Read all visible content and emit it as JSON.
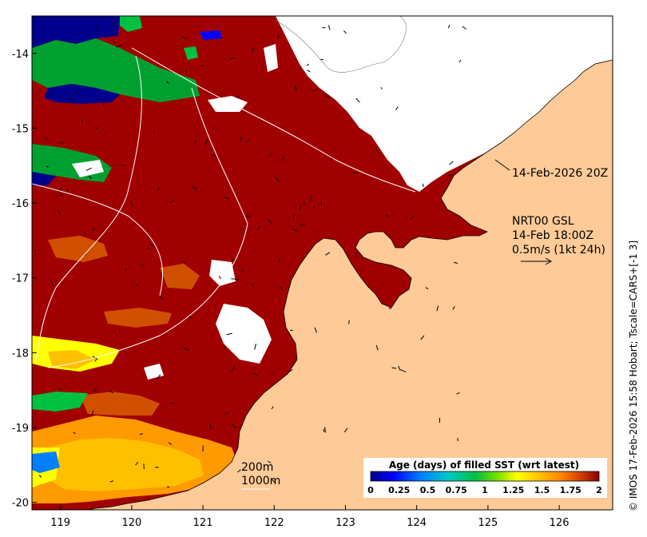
{
  "map": {
    "axes": {
      "lon_ticks": [
        "119",
        "120",
        "121",
        "122",
        "123",
        "124",
        "125",
        "126"
      ],
      "lat_ticks": [
        "-14",
        "-15",
        "-16",
        "-17",
        "-18",
        "-19",
        "-20"
      ],
      "lon_range": [
        118.6,
        126.75
      ],
      "lat_range": [
        -20.1,
        -13.5
      ]
    },
    "annotations": {
      "pass_time": "14-Feb-2026 20Z",
      "model_line1": "NRT00 GSL",
      "model_line2": "14-Feb 18:00Z",
      "model_line3": "0.5m/s (1kt 24h)",
      "depth_200": "200m",
      "depth_1000": "1000m"
    },
    "colorbar": {
      "title": "Age (days) of filled SST (wrt latest)",
      "ticks": [
        "0",
        "0.25",
        "0.5",
        "0.75",
        "1",
        "1.25",
        "1.5",
        "1.75",
        "2"
      ],
      "range": [
        0,
        2
      ],
      "colors": [
        "#00008b",
        "#0000ff",
        "#0080ff",
        "#00c8c8",
        "#00c040",
        "#80e000",
        "#ffff00",
        "#ffc000",
        "#ff8000",
        "#d04000",
        "#8b0000"
      ]
    },
    "credit": "© IMOS 17-Feb-2026 15:58 Hobart; Tscale=CARS+[-1 3]",
    "colors": {
      "ocean_dark_red": "#a00000",
      "land": "#fdca98",
      "cloud": "#ffffff"
    }
  }
}
